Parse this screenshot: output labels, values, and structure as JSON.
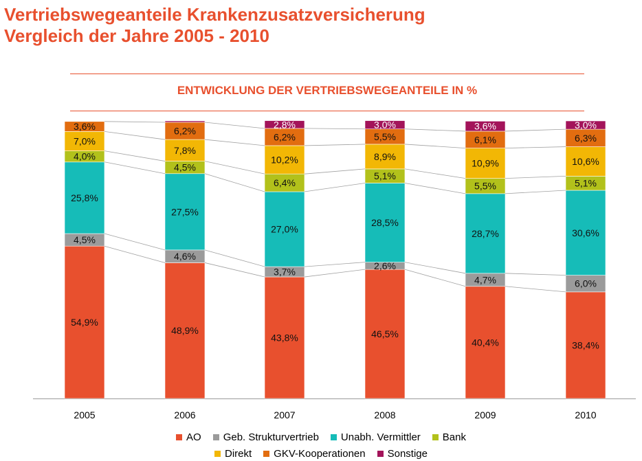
{
  "header": {
    "title_line1": "Vertriebswegeanteile Krankenzusatzversicherung",
    "title_line2": "Vergleich der Jahre 2005 - 2010",
    "subtitle": "ENTWICKLUNG DER VERTRIEBSWEGEANTEILE IN %"
  },
  "chart_data": {
    "type": "bar",
    "stacked": true,
    "title": "ENTWICKLUNG DER VERTRIEBSWEGEANTEILE IN %",
    "categories": [
      "2005",
      "2006",
      "2007",
      "2008",
      "2009",
      "2010"
    ],
    "ylim": [
      0,
      100
    ],
    "grid": false,
    "legend_position": "bottom",
    "connector_lines": true,
    "series": [
      {
        "name": "AO",
        "color": "#e8502e",
        "values": [
          54.9,
          48.9,
          43.8,
          46.5,
          40.4,
          38.4
        ],
        "labels": [
          "54,9%",
          "48,9%",
          "43,8%",
          "46,5%",
          "40,4%",
          "38,4%"
        ]
      },
      {
        "name": "Geb. Strukturvertrieb",
        "color": "#9b9b9b",
        "values": [
          4.5,
          4.6,
          3.7,
          2.6,
          4.7,
          6.0
        ],
        "labels": [
          "4,5%",
          "4,6%",
          "3,7%",
          "2,6%",
          "4,7%",
          "6,0%"
        ]
      },
      {
        "name": "Unabh. Vermittler",
        "color": "#16bcb8",
        "values": [
          25.8,
          27.5,
          27.0,
          28.5,
          28.7,
          30.6
        ],
        "labels": [
          "25,8%",
          "27,5%",
          "27,0%",
          "28,5%",
          "28,7%",
          "30,6%"
        ]
      },
      {
        "name": "Bank",
        "color": "#b2c11b",
        "values": [
          4.0,
          4.5,
          6.4,
          5.1,
          5.5,
          5.1
        ],
        "labels": [
          "4,0%",
          "4,5%",
          "6,4%",
          "5,1%",
          "5,5%",
          "5,1%"
        ]
      },
      {
        "name": "Direkt",
        "color": "#f2b705",
        "values": [
          7.0,
          7.8,
          10.2,
          8.9,
          10.9,
          10.6
        ],
        "labels": [
          "7,0%",
          "7,8%",
          "10,2%",
          "8,9%",
          "10,9%",
          "10,6%"
        ]
      },
      {
        "name": "GKV-Kooperationen",
        "color": "#e26d10",
        "values": [
          3.6,
          6.2,
          6.2,
          5.5,
          6.1,
          6.3
        ],
        "labels": [
          "3,6%",
          "6,2%",
          "6,2%",
          "5,5%",
          "6,1%",
          "6,3%"
        ]
      },
      {
        "name": "Sonstige",
        "color": "#a3145a",
        "values": [
          0.0,
          0.5,
          2.8,
          3.0,
          3.6,
          3.0
        ],
        "labels": [
          "",
          "",
          "2,8%",
          "3,0%",
          "3,6%",
          "3,0%"
        ]
      }
    ]
  }
}
